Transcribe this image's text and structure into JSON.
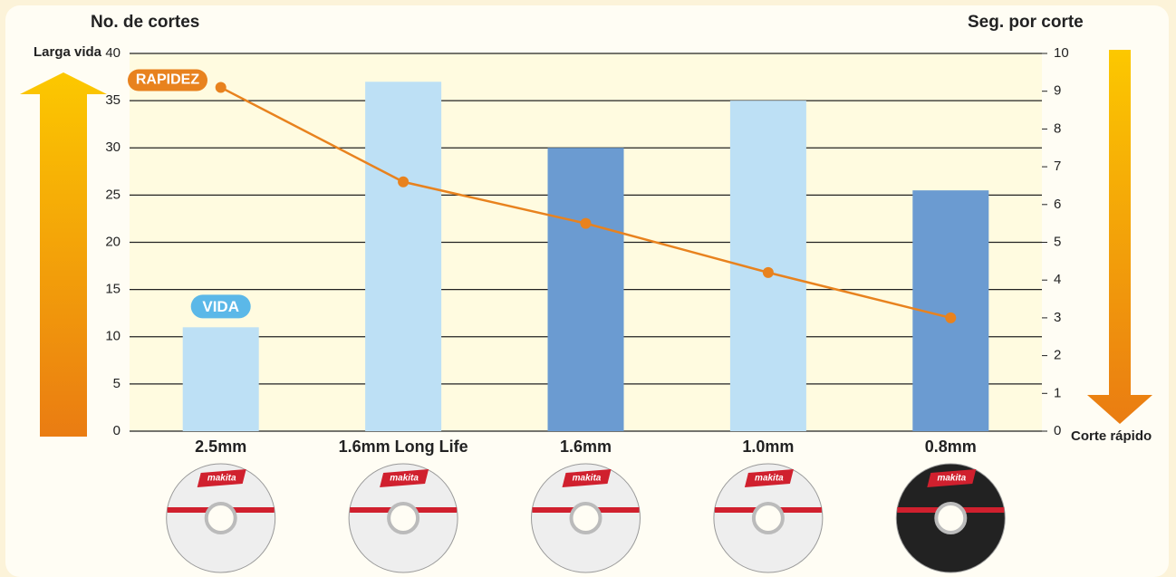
{
  "chart_data": {
    "type": "bar",
    "title": "No. de cortes",
    "y2_title": "Seg. por corte",
    "top_note": "Larga vida",
    "bottom_note": "Corte rápido",
    "disc_label": "makita",
    "categories": [
      "2.5mm",
      "1.6mm Long Life",
      "1.6mm",
      "1.0mm",
      "0.8mm"
    ],
    "series": [
      {
        "name": "VIDA",
        "type": "bar",
        "color": "#5bb8e8",
        "colors": [
          "#bde0f5",
          "#bde0f5",
          "#6b9bd1",
          "#bde0f5",
          "#6b9bd1"
        ],
        "values": [
          11,
          37,
          30,
          35,
          25.5
        ]
      },
      {
        "name": "RAPIDEZ",
        "type": "line",
        "axis": "y2",
        "color": "#e8821e",
        "values": [
          9.1,
          6.6,
          5.5,
          4.2,
          3.0
        ]
      }
    ],
    "ylim": [
      0,
      40
    ],
    "yticks": [
      0,
      5,
      10,
      15,
      20,
      25,
      30,
      35,
      40
    ],
    "y2lim": [
      0,
      10
    ],
    "y2ticks": [
      0,
      1,
      2,
      3,
      4,
      5,
      6,
      7,
      8,
      9,
      10
    ],
    "grid": true
  }
}
